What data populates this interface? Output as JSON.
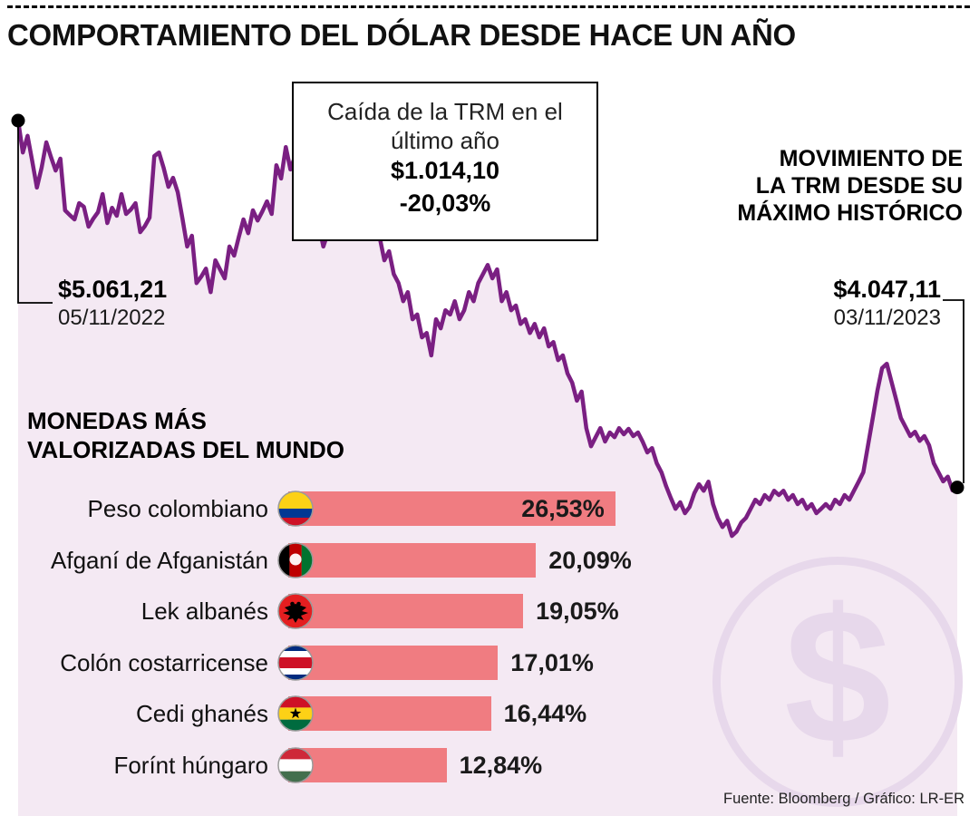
{
  "meta": {
    "title": "COMPORTAMIENTO DEL DÓLAR DESDE HACE UN AÑO",
    "source": "Fuente: Bloomberg / Gráfico: LR-ER"
  },
  "colors": {
    "line": "#7a1f82",
    "area": "#f4e9f3",
    "bar": "#f07c81",
    "watermark": "#e7d8eb",
    "dot": "#000000"
  },
  "trm": {
    "start": {
      "value": "$5.061,21",
      "date": "05/11/2022"
    },
    "end": {
      "value": "$4.047,11",
      "date": "03/11/2023"
    },
    "callout": {
      "line1": "Caída de la TRM en el",
      "line2": "último año",
      "amount": "$1.014,10",
      "percent": "-20,03%"
    },
    "note": [
      "MOVIMIENTO DE",
      "LA TRM DESDE SU",
      "MÁXIMO HISTÓRICO"
    ]
  },
  "currencies": {
    "heading": [
      "MONEDAS MÁS",
      "VALORIZADAS DEL MUNDO"
    ],
    "items": [
      {
        "label": "Peso colombiano",
        "flag": "colombia",
        "value": 26.53,
        "display": "26,53%"
      },
      {
        "label": "Afganí de Afganistán",
        "flag": "afghanistan",
        "value": 20.09,
        "display": "20,09%"
      },
      {
        "label": "Lek albanés",
        "flag": "albania",
        "value": 19.05,
        "display": "19,05%"
      },
      {
        "label": "Colón costarricense",
        "flag": "costa-rica",
        "value": 17.01,
        "display": "17,01%"
      },
      {
        "label": "Cedi ghanés",
        "flag": "ghana",
        "value": 16.44,
        "display": "16,44%"
      },
      {
        "label": "Forínt húngaro",
        "flag": "hungary",
        "value": 12.84,
        "display": "12,84%"
      }
    ]
  },
  "watermark_glyph": "$",
  "chart_data": [
    {
      "type": "line",
      "title": "Comportamiento del dólar desde hace un año (TRM)",
      "x_range": [
        "05/11/2022",
        "03/11/2023"
      ],
      "y_start": 5061.21,
      "y_end": 4047.11,
      "change_abs": -1014.1,
      "change_pct": -20.03,
      "ylim": [
        3900,
        5100
      ],
      "grid": false,
      "legend": false,
      "series": [
        {
          "name": "TRM",
          "values": [
            5061.21,
            4973,
            5019,
            4950,
            4876,
            4931,
            5001,
            4960,
            4923,
            4956,
            4813,
            4800,
            4788,
            4833,
            4823,
            4768,
            4790,
            4808,
            4858,
            4778,
            4820,
            4798,
            4858,
            4803,
            4815,
            4833,
            4753,
            4770,
            4793,
            4963,
            4973,
            4930,
            4878,
            4903,
            4863,
            4790,
            4713,
            4743,
            4612,
            4630,
            4652,
            4587,
            4675,
            4650,
            4625,
            4713,
            4688,
            4740,
            4788,
            4750,
            4813,
            4785,
            4810,
            4838,
            4803,
            4938,
            4901,
            4988,
            4926,
            4963,
            4853,
            4878,
            4825,
            4850,
            4775,
            4713,
            4753,
            4738,
            4790,
            4763,
            4803,
            4750,
            4815,
            4828,
            4788,
            4815,
            4750,
            4738,
            4675,
            4700,
            4637,
            4612,
            4562,
            4587,
            4512,
            4525,
            4462,
            4474,
            4412,
            4512,
            4487,
            4537,
            4525,
            4562,
            4512,
            4537,
            4587,
            4562,
            4612,
            4637,
            4662,
            4625,
            4650,
            4562,
            4587,
            4537,
            4550,
            4499,
            4512,
            4474,
            4499,
            4462,
            4487,
            4437,
            4449,
            4399,
            4412,
            4362,
            4337,
            4287,
            4312,
            4211,
            4161,
            4186,
            4211,
            4174,
            4199,
            4186,
            4211,
            4194,
            4209,
            4189,
            4199,
            4174,
            4144,
            4156,
            4114,
            4089,
            4051,
            4018,
            3988,
            4006,
            3976,
            3993,
            4031,
            4056,
            4038,
            4063,
            4001,
            3963,
            3938,
            3955,
            3913,
            3925,
            3950,
            3963,
            3988,
            4013,
            4001,
            4026,
            4013,
            4038,
            4026,
            4038,
            4013,
            4026,
            4001,
            4013,
            3988,
            4001,
            3976,
            3988,
            4001,
            3988,
            4013,
            4001,
            4026,
            4013,
            4038,
            4063,
            4089,
            4164,
            4239,
            4314,
            4377,
            4389,
            4339,
            4289,
            4239,
            4214,
            4189,
            4201,
            4176,
            4189,
            4164,
            4114,
            4089,
            4064,
            4077,
            4039,
            4047.11
          ]
        }
      ]
    },
    {
      "type": "bar",
      "title": "Monedas más valorizadas del mundo",
      "categories": [
        "Peso colombiano",
        "Afganí de Afganistán",
        "Lek albanés",
        "Colón costarricense",
        "Cedi ghanés",
        "Forínt húngaro"
      ],
      "values": [
        26.53,
        20.09,
        19.05,
        17.01,
        16.44,
        12.84
      ],
      "unit": "%",
      "orientation": "horizontal"
    }
  ]
}
